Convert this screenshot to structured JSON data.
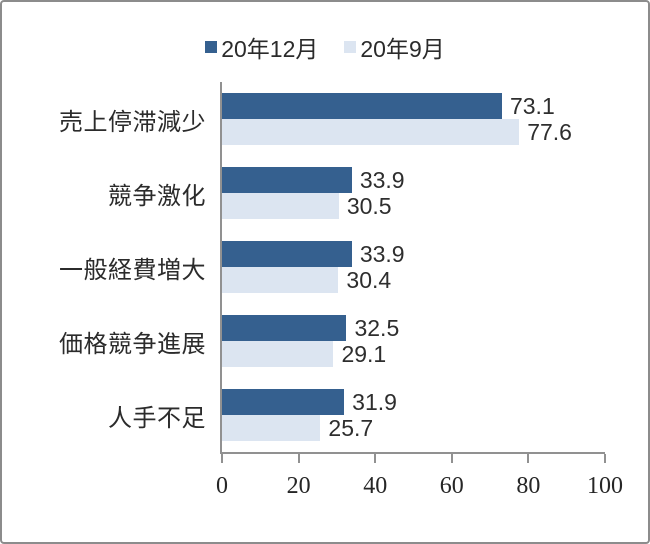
{
  "chart_data": {
    "type": "bar",
    "orientation": "horizontal",
    "title": "",
    "categories": [
      "売上停滞減少",
      "競争激化",
      "一般経費増大",
      "価格競争進展",
      "人手不足"
    ],
    "series": [
      {
        "name": "20年12月",
        "color": "#35608F",
        "values": [
          73.1,
          33.9,
          33.9,
          32.5,
          31.9
        ]
      },
      {
        "name": "20年9月",
        "color": "#DCE5F1",
        "values": [
          77.6,
          30.5,
          30.4,
          29.1,
          25.7
        ]
      }
    ],
    "value_labels": true,
    "value_decimals": 1,
    "xlim": [
      0,
      100
    ],
    "xticks": [
      0,
      20,
      40,
      60,
      80,
      100
    ],
    "legend_position": "top",
    "grid": false
  },
  "colors": {
    "frame_border": "#8c8c8c",
    "axis": "#919191",
    "text": "#2b2b2b",
    "series_dark": "#35608F",
    "series_light": "#DCE5F1"
  }
}
